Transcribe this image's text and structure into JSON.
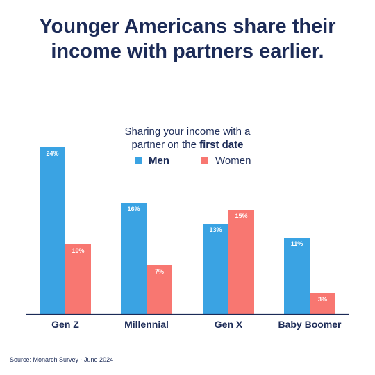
{
  "title_line1": "Younger Americans share their",
  "title_line2": "income with partners earlier.",
  "subtitle_line1": "Sharing your income with a",
  "subtitle_line2_prefix": "partner on the ",
  "subtitle_line2_bold": "first date",
  "source": "Source: Monarch Survey - June 2024",
  "colors": {
    "men": "#3aa3e3",
    "women": "#f87771",
    "text": "#1c2b57",
    "axis": "#1c2b57"
  },
  "chart_data": {
    "type": "bar",
    "title": "",
    "xlabel": "",
    "ylabel": "",
    "categories": [
      "Gen Z",
      "Millennial",
      "Gen X",
      "Baby Boomer"
    ],
    "series": [
      {
        "name": "Men",
        "values": [
          24,
          16,
          13,
          11
        ],
        "labels": [
          "24%",
          "16%",
          "13%",
          "11%"
        ]
      },
      {
        "name": "Women",
        "values": [
          10,
          7,
          15,
          3
        ],
        "labels": [
          "10%",
          "7%",
          "15%",
          "3%"
        ]
      }
    ],
    "ylim": [
      0,
      24
    ],
    "grid": false,
    "legend_position": "top-center"
  }
}
